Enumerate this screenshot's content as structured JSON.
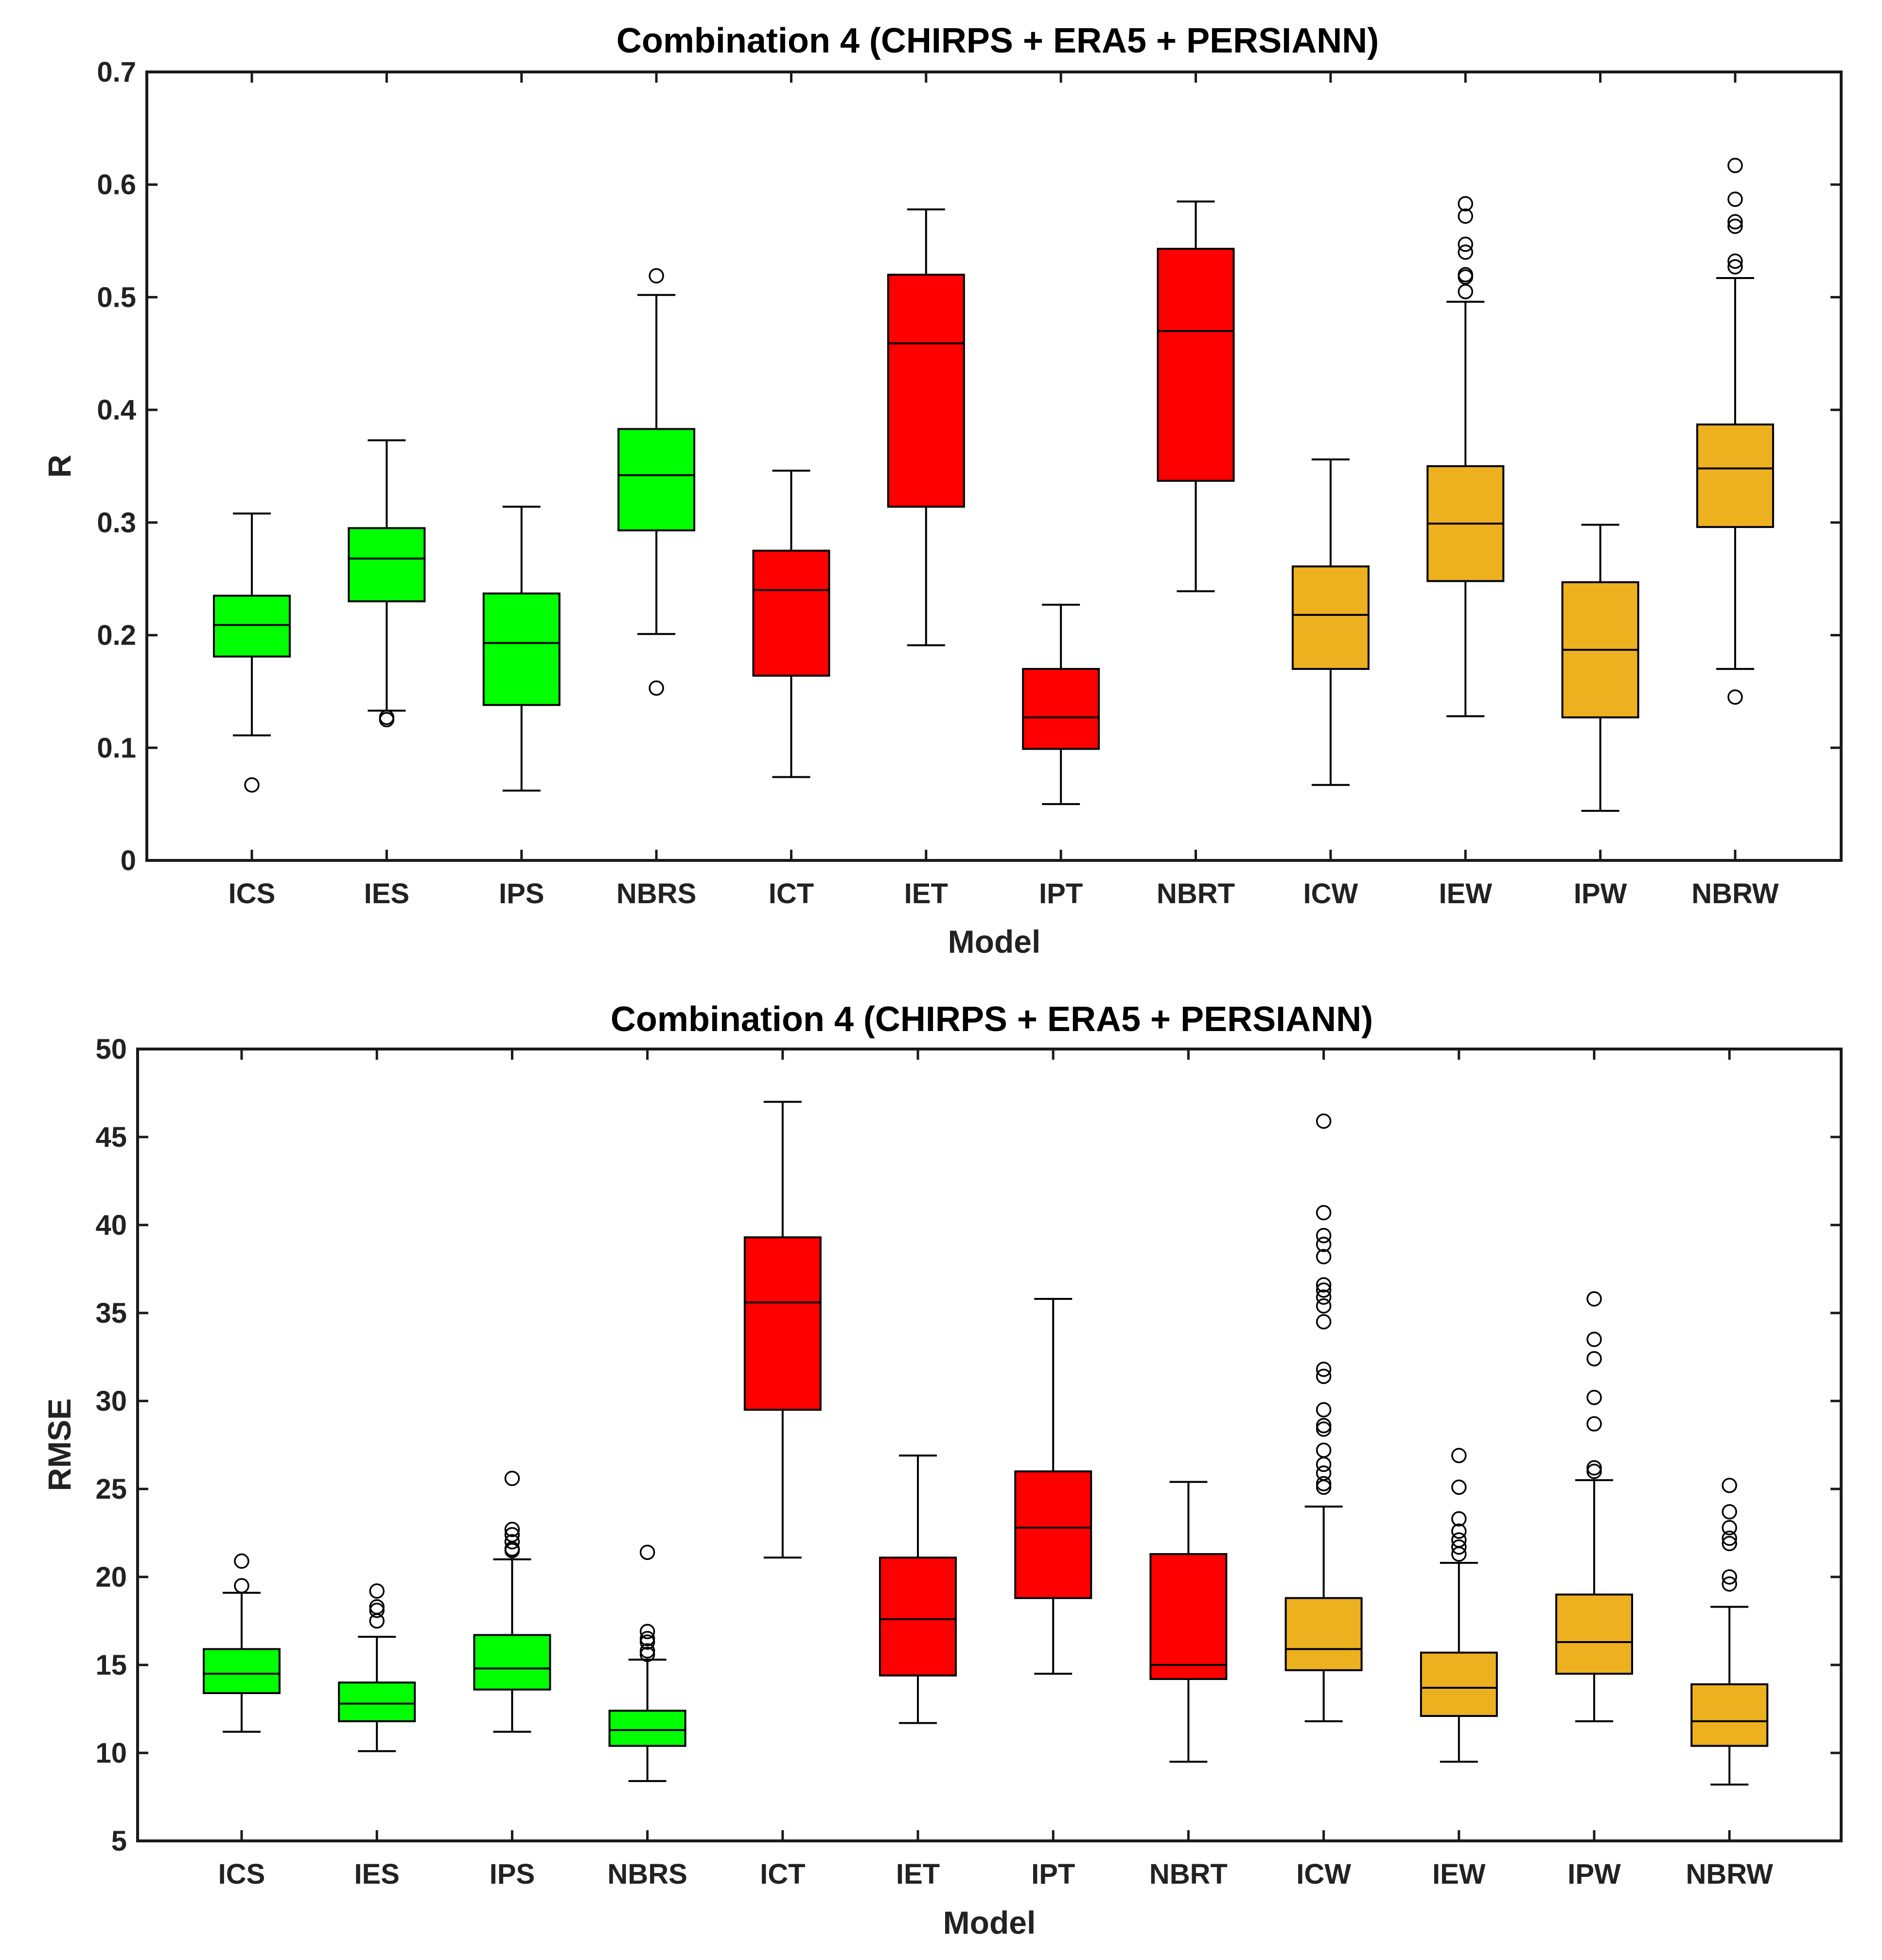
{
  "chart_data": [
    {
      "type": "boxplot",
      "title": "Combination 4 (CHIRPS + ERA5 + PERSIANN)",
      "xlabel": "Model",
      "ylabel": "R",
      "ylim": [
        0,
        0.7
      ],
      "yticks": [
        "0",
        "0.1",
        "0.2",
        "0.3",
        "0.4",
        "0.5",
        "0.6",
        "0.7"
      ],
      "yticks_values": [
        0,
        0.1,
        0.2,
        0.3,
        0.4,
        0.5,
        0.6,
        0.7
      ],
      "categories": [
        "ICS",
        "IES",
        "IPS",
        "NBRS",
        "ICT",
        "IET",
        "IPT",
        "NBRT",
        "ICW",
        "IEW",
        "IPW",
        "NBRW"
      ],
      "colors": [
        "#00ff00",
        "#00ff00",
        "#00ff00",
        "#00ff00",
        "#ff0000",
        "#ff0000",
        "#ff0000",
        "#ff0000",
        "#edb120",
        "#edb120",
        "#edb120",
        "#edb120"
      ],
      "boxes": [
        {
          "whisker_low": 0.111,
          "q1": 0.181,
          "median": 0.209,
          "q3": 0.235,
          "whisker_high": 0.308,
          "outliers": [
            0.067
          ]
        },
        {
          "whisker_low": 0.133,
          "q1": 0.23,
          "median": 0.268,
          "q3": 0.295,
          "whisker_high": 0.373,
          "outliers": [
            0.127,
            0.125
          ]
        },
        {
          "whisker_low": 0.062,
          "q1": 0.138,
          "median": 0.193,
          "q3": 0.237,
          "whisker_high": 0.314,
          "outliers": []
        },
        {
          "whisker_low": 0.201,
          "q1": 0.293,
          "median": 0.342,
          "q3": 0.383,
          "whisker_high": 0.502,
          "outliers": [
            0.519,
            0.153
          ]
        },
        {
          "whisker_low": 0.074,
          "q1": 0.164,
          "median": 0.24,
          "q3": 0.275,
          "whisker_high": 0.346,
          "outliers": []
        },
        {
          "whisker_low": 0.191,
          "q1": 0.314,
          "median": 0.459,
          "q3": 0.52,
          "whisker_high": 0.578,
          "outliers": []
        },
        {
          "whisker_low": 0.05,
          "q1": 0.099,
          "median": 0.127,
          "q3": 0.17,
          "whisker_high": 0.227,
          "outliers": []
        },
        {
          "whisker_low": 0.239,
          "q1": 0.337,
          "median": 0.47,
          "q3": 0.543,
          "whisker_high": 0.585,
          "outliers": []
        },
        {
          "whisker_low": 0.067,
          "q1": 0.17,
          "median": 0.218,
          "q3": 0.261,
          "whisker_high": 0.356,
          "outliers": []
        },
        {
          "whisker_low": 0.128,
          "q1": 0.248,
          "median": 0.299,
          "q3": 0.35,
          "whisker_high": 0.496,
          "outliers": [
            0.505,
            0.518,
            0.52,
            0.54,
            0.547,
            0.572,
            0.583
          ]
        },
        {
          "whisker_low": 0.044,
          "q1": 0.127,
          "median": 0.187,
          "q3": 0.247,
          "whisker_high": 0.298,
          "outliers": []
        },
        {
          "whisker_low": 0.17,
          "q1": 0.296,
          "median": 0.348,
          "q3": 0.387,
          "whisker_high": 0.517,
          "outliers": [
            0.145,
            0.527,
            0.532,
            0.563,
            0.567,
            0.587,
            0.617
          ]
        }
      ]
    },
    {
      "type": "boxplot",
      "title": "Combination 4 (CHIRPS + ERA5 + PERSIANN)",
      "xlabel": "Model",
      "ylabel": "RMSE",
      "ylim": [
        5,
        50
      ],
      "yticks": [
        "5",
        "10",
        "15",
        "20",
        "25",
        "30",
        "35",
        "40",
        "45",
        "50"
      ],
      "yticks_values": [
        5,
        10,
        15,
        20,
        25,
        30,
        35,
        40,
        45,
        50
      ],
      "categories": [
        "ICS",
        "IES",
        "IPS",
        "NBRS",
        "ICT",
        "IET",
        "IPT",
        "NBRT",
        "ICW",
        "IEW",
        "IPW",
        "NBRW"
      ],
      "colors": [
        "#00ff00",
        "#00ff00",
        "#00ff00",
        "#00ff00",
        "#ff0000",
        "#ff0000",
        "#ff0000",
        "#ff0000",
        "#edb120",
        "#edb120",
        "#edb120",
        "#edb120"
      ],
      "boxes": [
        {
          "whisker_low": 11.2,
          "q1": 13.4,
          "median": 14.5,
          "q3": 15.9,
          "whisker_high": 19.1,
          "outliers": [
            19.5,
            20.9
          ]
        },
        {
          "whisker_low": 10.1,
          "q1": 11.8,
          "median": 12.8,
          "q3": 14.0,
          "whisker_high": 16.6,
          "outliers": [
            17.5,
            18.1,
            18.3,
            19.2
          ]
        },
        {
          "whisker_low": 11.2,
          "q1": 13.6,
          "median": 14.8,
          "q3": 16.7,
          "whisker_high": 21.0,
          "outliers": [
            21.5,
            21.6,
            22.0,
            22.4,
            22.7,
            25.6
          ]
        },
        {
          "whisker_low": 8.4,
          "q1": 10.4,
          "median": 11.3,
          "q3": 12.4,
          "whisker_high": 15.3,
          "outliers": [
            15.6,
            15.8,
            16.3,
            16.5,
            16.9,
            21.4
          ]
        },
        {
          "whisker_low": 21.1,
          "q1": 29.5,
          "median": 35.6,
          "q3": 39.3,
          "whisker_high": 47.0,
          "outliers": []
        },
        {
          "whisker_low": 11.7,
          "q1": 14.4,
          "median": 17.6,
          "q3": 21.1,
          "whisker_high": 26.9,
          "outliers": []
        },
        {
          "whisker_low": 14.5,
          "q1": 18.8,
          "median": 22.8,
          "q3": 26.0,
          "whisker_high": 35.8,
          "outliers": []
        },
        {
          "whisker_low": 9.5,
          "q1": 14.2,
          "median": 15.0,
          "q3": 21.3,
          "whisker_high": 25.4,
          "outliers": []
        },
        {
          "whisker_low": 11.8,
          "q1": 14.7,
          "median": 15.9,
          "q3": 18.8,
          "whisker_high": 24.0,
          "outliers": [
            25.1,
            25.3,
            25.9,
            26.4,
            27.2,
            28.4,
            28.6,
            29.5,
            31.4,
            31.8,
            34.5,
            35.4,
            35.9,
            36.3,
            36.6,
            38.2,
            38.9,
            39.4,
            40.7,
            45.9
          ]
        },
        {
          "whisker_low": 9.5,
          "q1": 12.1,
          "median": 13.7,
          "q3": 15.7,
          "whisker_high": 20.8,
          "outliers": [
            21.3,
            21.7,
            22.1,
            22.6,
            23.3,
            25.1,
            26.9
          ]
        },
        {
          "whisker_low": 11.8,
          "q1": 14.5,
          "median": 16.3,
          "q3": 19.0,
          "whisker_high": 25.5,
          "outliers": [
            26.0,
            26.2,
            28.7,
            30.2,
            32.4,
            33.5,
            35.8
          ]
        },
        {
          "whisker_low": 8.2,
          "q1": 10.4,
          "median": 11.8,
          "q3": 13.9,
          "whisker_high": 18.3,
          "outliers": [
            19.6,
            20.0,
            21.9,
            22.2,
            22.8,
            23.7,
            25.2
          ]
        }
      ]
    }
  ]
}
